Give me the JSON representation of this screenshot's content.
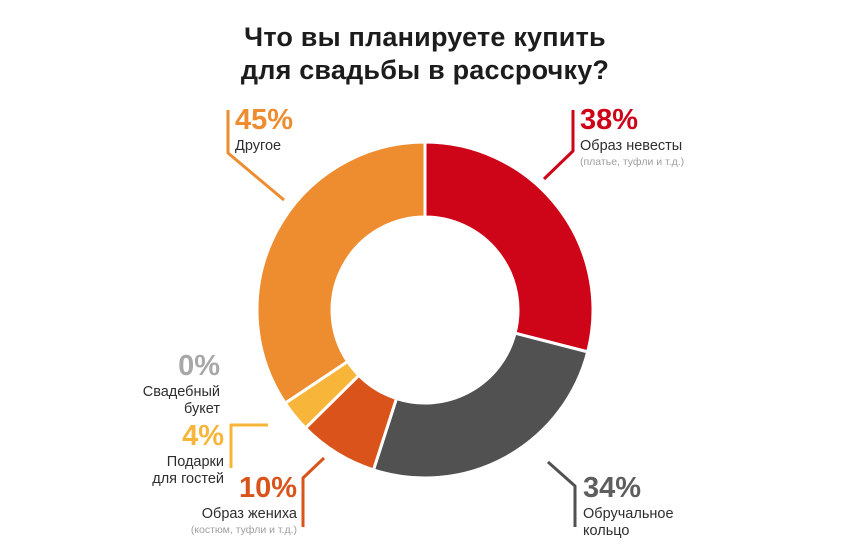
{
  "page": {
    "background": "#ffffff"
  },
  "title": {
    "line1": "Что вы планируете купить",
    "line2": "для свадьбы в рассрочку?"
  },
  "chart_data": {
    "type": "pie",
    "subtype": "donut",
    "title": "Что вы планируете купить для свадьбы в рассрочку?",
    "unit": "%",
    "start_angle_deg": -90,
    "direction": "clockwise",
    "segments": [
      {
        "label": "Образ невесты",
        "sublabel": "(платье, туфли и т.д.)",
        "value": 38,
        "pct_label": "38%",
        "color": "#CE0418"
      },
      {
        "label": "Обручальное кольцо",
        "value": 34,
        "pct_label": "34%",
        "color": "#515151",
        "pct_color": "#5E5E5E"
      },
      {
        "label": "Образ жениха",
        "sublabel": "(костюм, туфли и т.д.)",
        "value": 10,
        "pct_label": "10%",
        "color": "#D9531B"
      },
      {
        "label": "Подарки для гостей",
        "value": 4,
        "pct_label": "4%",
        "color": "#F7B53A"
      },
      {
        "label": "Свадебный букет",
        "value": 0,
        "pct_label": "0%",
        "color": "#A8A8A8"
      },
      {
        "label": "Другое",
        "value": 45,
        "pct_label": "45%",
        "color": "#EE8C30"
      }
    ]
  }
}
